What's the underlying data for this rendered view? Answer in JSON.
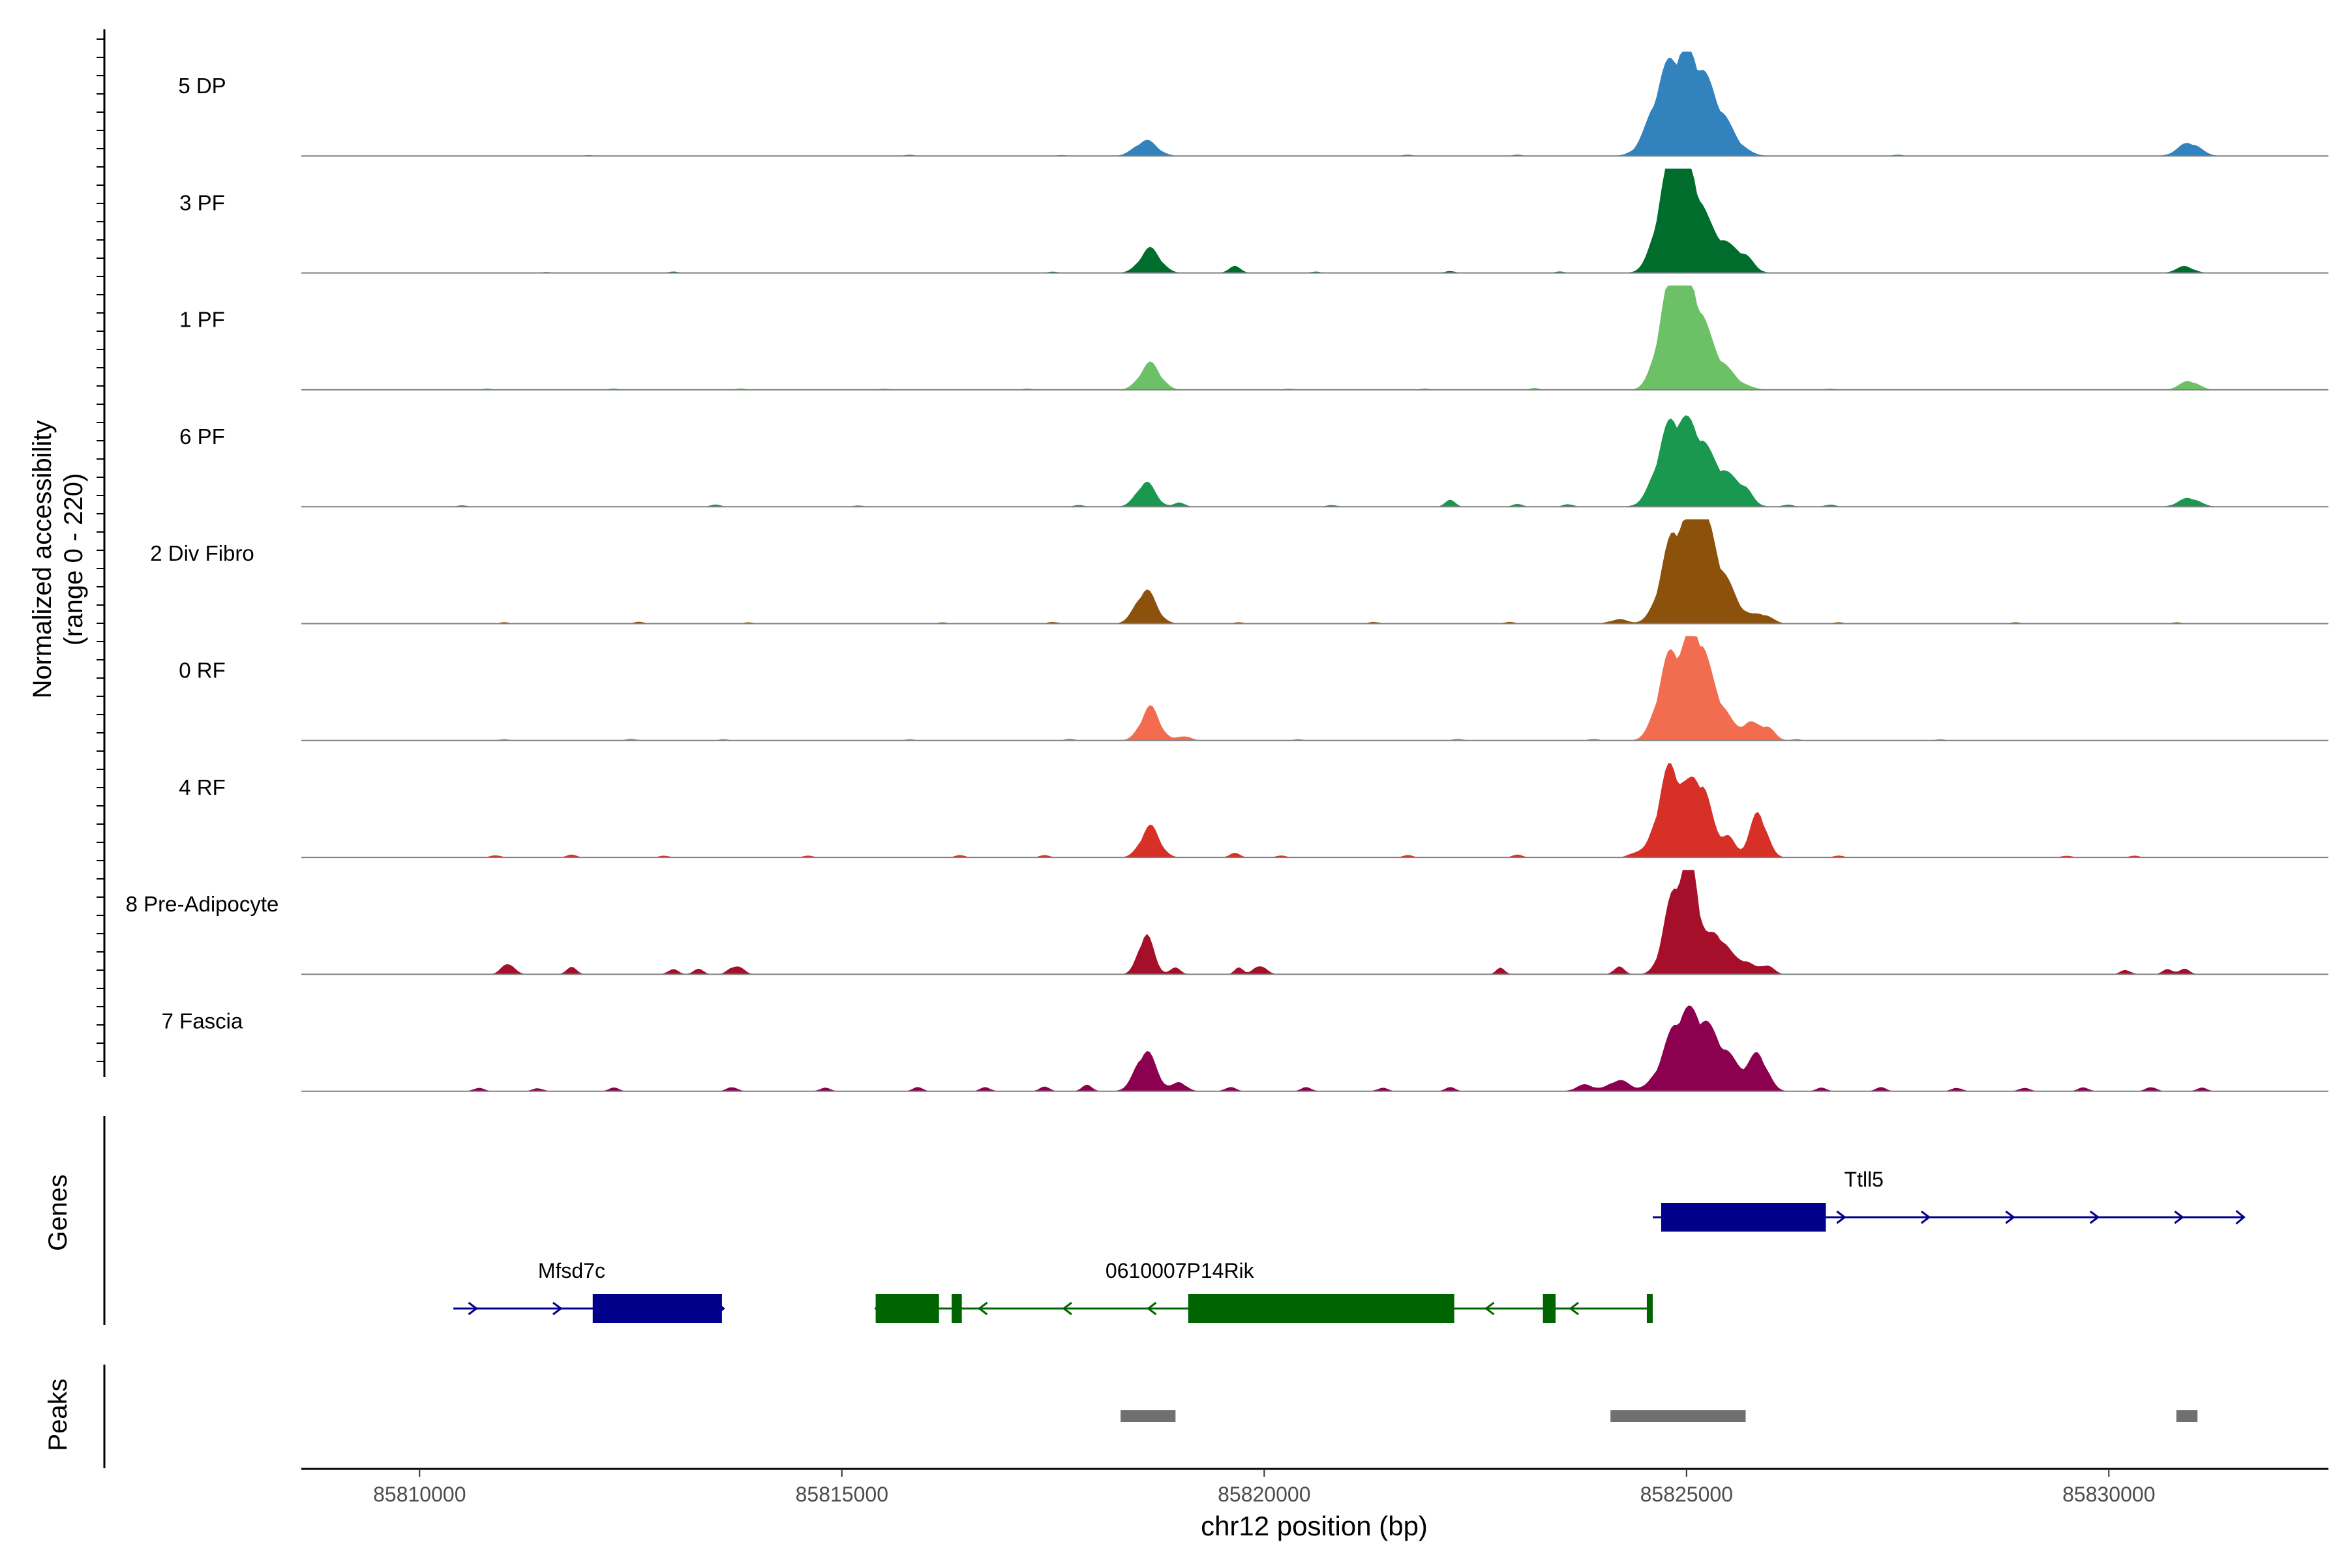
{
  "chart_data": {
    "type": "area",
    "title": "",
    "xlabel": "chr12 position (bp)",
    "ylabel": "Normalized accessibility",
    "ylabel_range": "(range 0 - 220)",
    "ylim": [
      0,
      220
    ],
    "xlim": [
      85808600,
      85832600
    ],
    "x_ticks": [
      85810000,
      85815000,
      85820000,
      85825000,
      85830000
    ],
    "x_tick_labels": [
      "85810000",
      "85815000",
      "85820000",
      "85825000",
      "85830000"
    ],
    "genes_label": "Genes",
    "peaks_label": "Peaks",
    "tracks": [
      {
        "name": "5 DP",
        "color": "#3182BD",
        "peaks": [
          [
            85818600,
            35,
            130
          ],
          [
            85824750,
            155,
            180
          ],
          [
            85825050,
            165,
            180
          ],
          [
            85825350,
            90,
            200
          ],
          [
            85830950,
            30,
            130
          ]
        ],
        "noise": [
          [
            85812000,
            2
          ],
          [
            85815800,
            3
          ],
          [
            85817600,
            2
          ],
          [
            85821700,
            3
          ],
          [
            85823000,
            3
          ],
          [
            85827500,
            3
          ]
        ]
      },
      {
        "name": "3 PF",
        "color": "#006D2C",
        "peaks": [
          [
            85818650,
            55,
            120
          ],
          [
            85819650,
            15,
            70
          ],
          [
            85824800,
            210,
            150
          ],
          [
            85825050,
            175,
            150
          ],
          [
            85825400,
            70,
            180
          ],
          [
            85825700,
            25,
            100
          ],
          [
            85830900,
            15,
            100
          ]
        ],
        "noise": [
          [
            85811500,
            2
          ],
          [
            85813000,
            3
          ],
          [
            85817500,
            3
          ],
          [
            85820600,
            3
          ],
          [
            85822200,
            4
          ],
          [
            85823500,
            3
          ]
        ]
      },
      {
        "name": "1 PF",
        "color": "#6CC066",
        "peaks": [
          [
            85818650,
            60,
            120
          ],
          [
            85824800,
            200,
            140
          ],
          [
            85825050,
            165,
            150
          ],
          [
            85825300,
            70,
            220
          ],
          [
            85830950,
            20,
            110
          ]
        ],
        "noise": [
          [
            85810800,
            3
          ],
          [
            85812300,
            3
          ],
          [
            85813800,
            3
          ],
          [
            85815500,
            3
          ],
          [
            85817200,
            3
          ],
          [
            85820300,
            3
          ],
          [
            85821900,
            3
          ],
          [
            85823200,
            4
          ],
          [
            85826700,
            3
          ]
        ]
      },
      {
        "name": "6 PF",
        "color": "#1A9850",
        "peaks": [
          [
            85818600,
            55,
            110
          ],
          [
            85819000,
            10,
            60
          ],
          [
            85824800,
            165,
            160
          ],
          [
            85825100,
            140,
            160
          ],
          [
            85825450,
            70,
            180
          ],
          [
            85825700,
            20,
            80
          ],
          [
            85822200,
            15,
            60
          ],
          [
            85830950,
            20,
            120
          ]
        ],
        "noise": [
          [
            85810500,
            3
          ],
          [
            85813500,
            5
          ],
          [
            85815200,
            3
          ],
          [
            85817800,
            4
          ],
          [
            85820800,
            4
          ],
          [
            85823000,
            6
          ],
          [
            85823600,
            6
          ],
          [
            85826200,
            5
          ],
          [
            85826700,
            5
          ]
        ]
      },
      {
        "name": "2 Div Fibro",
        "color": "#8C510A",
        "peaks": [
          [
            85818600,
            75,
            120
          ],
          [
            85824850,
            190,
            150
          ],
          [
            85825150,
            200,
            140
          ],
          [
            85825400,
            100,
            180
          ],
          [
            85825900,
            20,
            110
          ],
          [
            85824200,
            10,
            100
          ]
        ],
        "noise": [
          [
            85811000,
            3
          ],
          [
            85812600,
            4
          ],
          [
            85813900,
            3
          ],
          [
            85816200,
            3
          ],
          [
            85817500,
            4
          ],
          [
            85819700,
            3
          ],
          [
            85821300,
            4
          ],
          [
            85822900,
            4
          ],
          [
            85826800,
            3
          ],
          [
            85828900,
            3
          ],
          [
            85830800,
            3
          ]
        ]
      },
      {
        "name": "0 RF",
        "color": "#F26C4F",
        "peaks": [
          [
            85818650,
            75,
            110
          ],
          [
            85819050,
            10,
            80
          ],
          [
            85824800,
            180,
            140
          ],
          [
            85825100,
            210,
            130
          ],
          [
            85825350,
            85,
            160
          ],
          [
            85825750,
            35,
            90
          ],
          [
            85825950,
            30,
            90
          ]
        ],
        "noise": [
          [
            85811000,
            3
          ],
          [
            85812500,
            4
          ],
          [
            85813600,
            3
          ],
          [
            85815800,
            3
          ],
          [
            85817700,
            4
          ],
          [
            85820400,
            3
          ],
          [
            85822300,
            4
          ],
          [
            85823900,
            4
          ],
          [
            85826300,
            3
          ],
          [
            85828000,
            3
          ]
        ]
      },
      {
        "name": "4 RF",
        "color": "#D73027",
        "peaks": [
          [
            85818650,
            70,
            110
          ],
          [
            85819650,
            10,
            60
          ],
          [
            85824800,
            195,
            140
          ],
          [
            85825150,
            170,
            140
          ],
          [
            85825500,
            40,
            80
          ],
          [
            85825850,
            100,
            100
          ],
          [
            85824400,
            10,
            80
          ]
        ],
        "noise": [
          [
            85810900,
            5
          ],
          [
            85811800,
            6
          ],
          [
            85812900,
            4
          ],
          [
            85814600,
            4
          ],
          [
            85816400,
            5
          ],
          [
            85817400,
            5
          ],
          [
            85820200,
            4
          ],
          [
            85821700,
            5
          ],
          [
            85823000,
            6
          ],
          [
            85826800,
            4
          ],
          [
            85829500,
            4
          ],
          [
            85830300,
            4
          ]
        ]
      },
      {
        "name": "8 Pre-Adipocyte",
        "color": "#A50F2A",
        "peaks": [
          [
            85818600,
            90,
            90
          ],
          [
            85818950,
            15,
            60
          ],
          [
            85819700,
            15,
            50
          ],
          [
            85824850,
            175,
            120
          ],
          [
            85825050,
            220,
            90
          ],
          [
            85825350,
            90,
            150
          ],
          [
            85825700,
            25,
            100
          ],
          [
            85825950,
            20,
            80
          ],
          [
            85824200,
            18,
            60
          ],
          [
            85822800,
            15,
            50
          ]
        ],
        "noise": [
          [
            85811000,
            16
          ],
          [
            85811100,
            14
          ],
          [
            85811800,
            16
          ],
          [
            85813000,
            12
          ],
          [
            85813300,
            12
          ],
          [
            85813700,
            14
          ],
          [
            85813800,
            12
          ],
          [
            85819900,
            12
          ],
          [
            85820000,
            12
          ],
          [
            85830200,
            10
          ],
          [
            85830700,
            12
          ],
          [
            85830900,
            12
          ]
        ]
      },
      {
        "name": "7 Fascia",
        "color": "#8C0050",
        "peaks": [
          [
            85818600,
            90,
            120
          ],
          [
            85819000,
            20,
            80
          ],
          [
            85824900,
            140,
            180
          ],
          [
            85825200,
            120,
            170
          ],
          [
            85825500,
            60,
            150
          ],
          [
            85825850,
            80,
            110
          ],
          [
            85824200,
            25,
            120
          ],
          [
            85823800,
            15,
            100
          ]
        ],
        "noise": [
          [
            85810700,
            8
          ],
          [
            85811400,
            7
          ],
          [
            85812300,
            8
          ],
          [
            85813700,
            10
          ],
          [
            85814800,
            8
          ],
          [
            85815900,
            9
          ],
          [
            85816700,
            9
          ],
          [
            85817400,
            10
          ],
          [
            85817900,
            14
          ],
          [
            85819600,
            10
          ],
          [
            85820500,
            9
          ],
          [
            85821400,
            8
          ],
          [
            85822200,
            9
          ],
          [
            85826600,
            8
          ],
          [
            85827300,
            9
          ],
          [
            85828200,
            8
          ],
          [
            85829000,
            8
          ],
          [
            85829700,
            9
          ],
          [
            85830500,
            10
          ],
          [
            85831100,
            8
          ]
        ]
      }
    ],
    "genes": [
      {
        "name": "Ttll5",
        "strand": "+",
        "color": "#00008B",
        "row": 0,
        "start": 85824600,
        "end": 85831600,
        "exons": [
          [
            85824700,
            85826650
          ]
        ],
        "label_x": 85827100
      },
      {
        "name": "Mfsd7c",
        "strand": "+",
        "color": "#00008B",
        "row": 1,
        "start": 85810400,
        "end": 85813600,
        "exons": [
          [
            85812050,
            85813580
          ]
        ],
        "label_x": 85811800
      },
      {
        "name": "0610007P14Rik",
        "strand": "-",
        "color": "#006400",
        "row": 1,
        "start": 85815400,
        "end": 85824600,
        "exons": [
          [
            85815400,
            85816150
          ],
          [
            85816300,
            85816420
          ],
          [
            85819100,
            85822250
          ],
          [
            85823300,
            85823450
          ],
          [
            85824530,
            85824600
          ]
        ],
        "label_x": 85819000
      }
    ],
    "peaks_regions": [
      [
        85818300,
        85818950
      ],
      [
        85824100,
        85825700
      ],
      [
        85830800,
        85831050
      ]
    ]
  }
}
